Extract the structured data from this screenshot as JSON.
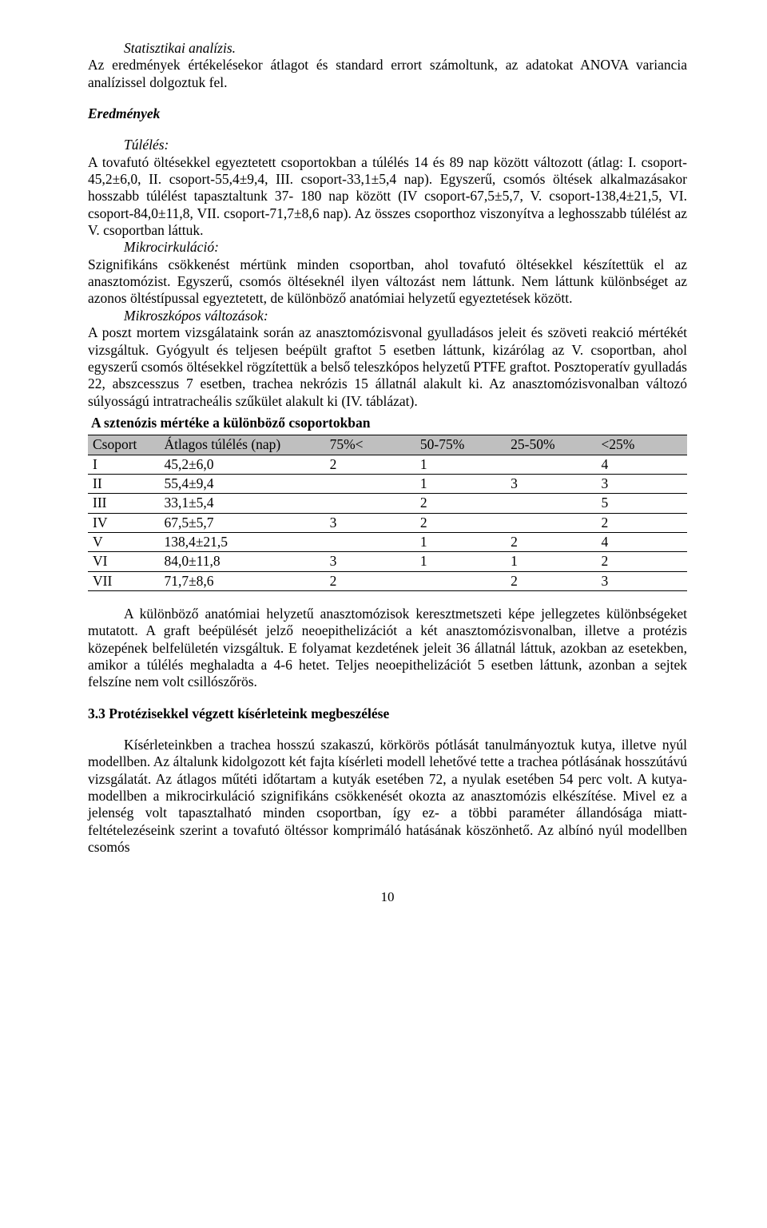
{
  "p1_heading": "Statisztikai analízis.",
  "p1_body": "Az eredmények értékelésekor átlagot és standard errort számoltunk, az adatokat ANOVA variancia analízissel dolgoztuk fel.",
  "h_results": "Eredmények",
  "p2_heading": "Túlélés:",
  "p2_body": "A tovafutó öltésekkel egyeztetett csoportokban a túlélés 14 és 89 nap között változott (átlag: I. csoport-45,2±6,0, II. csoport-55,4±9,4, III. csoport-33,1±5,4 nap). Egyszerű, csomós öltések alkalmazásakor hosszabb túlélést tapasztaltunk 37- 180 nap között (IV csoport-67,5±5,7, V. csoport-138,4±21,5, VI. csoport-84,0±11,8, VII. csoport-71,7±8,6 nap). Az összes csoporthoz viszonyítva a leghosszabb túlélést az V. csoportban láttuk.",
  "p3_heading": "Mikrocirkuláció:",
  "p3_body": "Szignifikáns csökkenést mértünk minden csoportban, ahol tovafutó öltésekkel készítettük el az anasztomózist. Egyszerű, csomós öltéseknél ilyen változást nem láttunk. Nem láttunk különbséget az azonos öltéstípussal egyeztetett, de különböző anatómiai helyzetű egyeztetések között.",
  "p4_heading": "Mikroszkópos változások:",
  "p4_body": "A poszt mortem vizsgálataink során az anasztomózisvonal gyulladásos jeleit és szöveti reakció mértékét vizsgáltuk. Gyógyult és teljesen beépült graftot 5 esetben láttunk, kizárólag az V. csoportban, ahol egyszerű csomós öltésekkel rögzítettük a belső teleszkópos helyzetű PTFE graftot. Posztoperatív gyulladás 22, abszcesszus 7 esetben, trachea nekrózis 15 állatnál alakult ki. Az anasztomózisvonalban változó súlyosságú intratracheális szűkület alakult ki (IV. táblázat).",
  "table": {
    "title": "A sztenózis mértéke a különböző csoportokban",
    "columns": [
      "Csoport",
      "Átlagos túlélés (nap)",
      "75%<",
      "50-75%",
      "25-50%",
      "<25%"
    ],
    "rows": [
      [
        "I",
        "45,2±6,0",
        "2",
        "1",
        "",
        "4"
      ],
      [
        "II",
        "55,4±9,4",
        "",
        "1",
        "3",
        "3"
      ],
      [
        "III",
        "33,1±5,4",
        "",
        "2",
        "",
        "5"
      ],
      [
        "IV",
        "67,5±5,7",
        "3",
        "2",
        "",
        "2"
      ],
      [
        "V",
        "138,4±21,5",
        "",
        "1",
        "2",
        "4"
      ],
      [
        "VI",
        "84,0±11,8",
        "3",
        "1",
        "1",
        "2"
      ],
      [
        "VII",
        "71,7±8,6",
        "2",
        "",
        "2",
        "3"
      ]
    ]
  },
  "p5_body": "A különböző anatómiai helyzetű anasztomózisok keresztmetszeti képe jellegzetes különbségeket mutatott. A graft beépülését jelző neoepithelizációt a két anasztomózisvonalban, illetve a protézis közepének belfelületén vizsgáltuk. E folyamat kezdetének jeleit 36 állatnál láttuk, azokban az esetekben, amikor a túlélés meghaladta a 4-6 hetet. Teljes neoepithelizációt 5 esetben láttunk, azonban a sejtek felszíne nem volt csillószőrös.",
  "h_33": "3.3 Protézisekkel végzett kísérleteink megbeszélése",
  "p6_body": "Kísérleteinkben a trachea hosszú szakaszú, körkörös pótlását tanulmányoztuk kutya, illetve nyúl modellben. Az általunk kidolgozott két fajta kísérleti modell lehetővé tette a trachea pótlásának hosszútávú vizsgálatát. Az átlagos műtéti időtartam a kutyák esetében 72, a nyulak esetében 54 perc volt. A kutya-modellben a mikrocirkuláció szignifikáns csökkenését okozta az anasztomózis elkészítése. Mivel ez a jelenség volt tapasztalható minden csoportban, így ez- a többi paraméter állandósága miatt- feltételezéseink szerint a tovafutó öltéssor komprimáló hatásának köszönhető. Az albínó nyúl modellben csomós",
  "page_number": "10"
}
